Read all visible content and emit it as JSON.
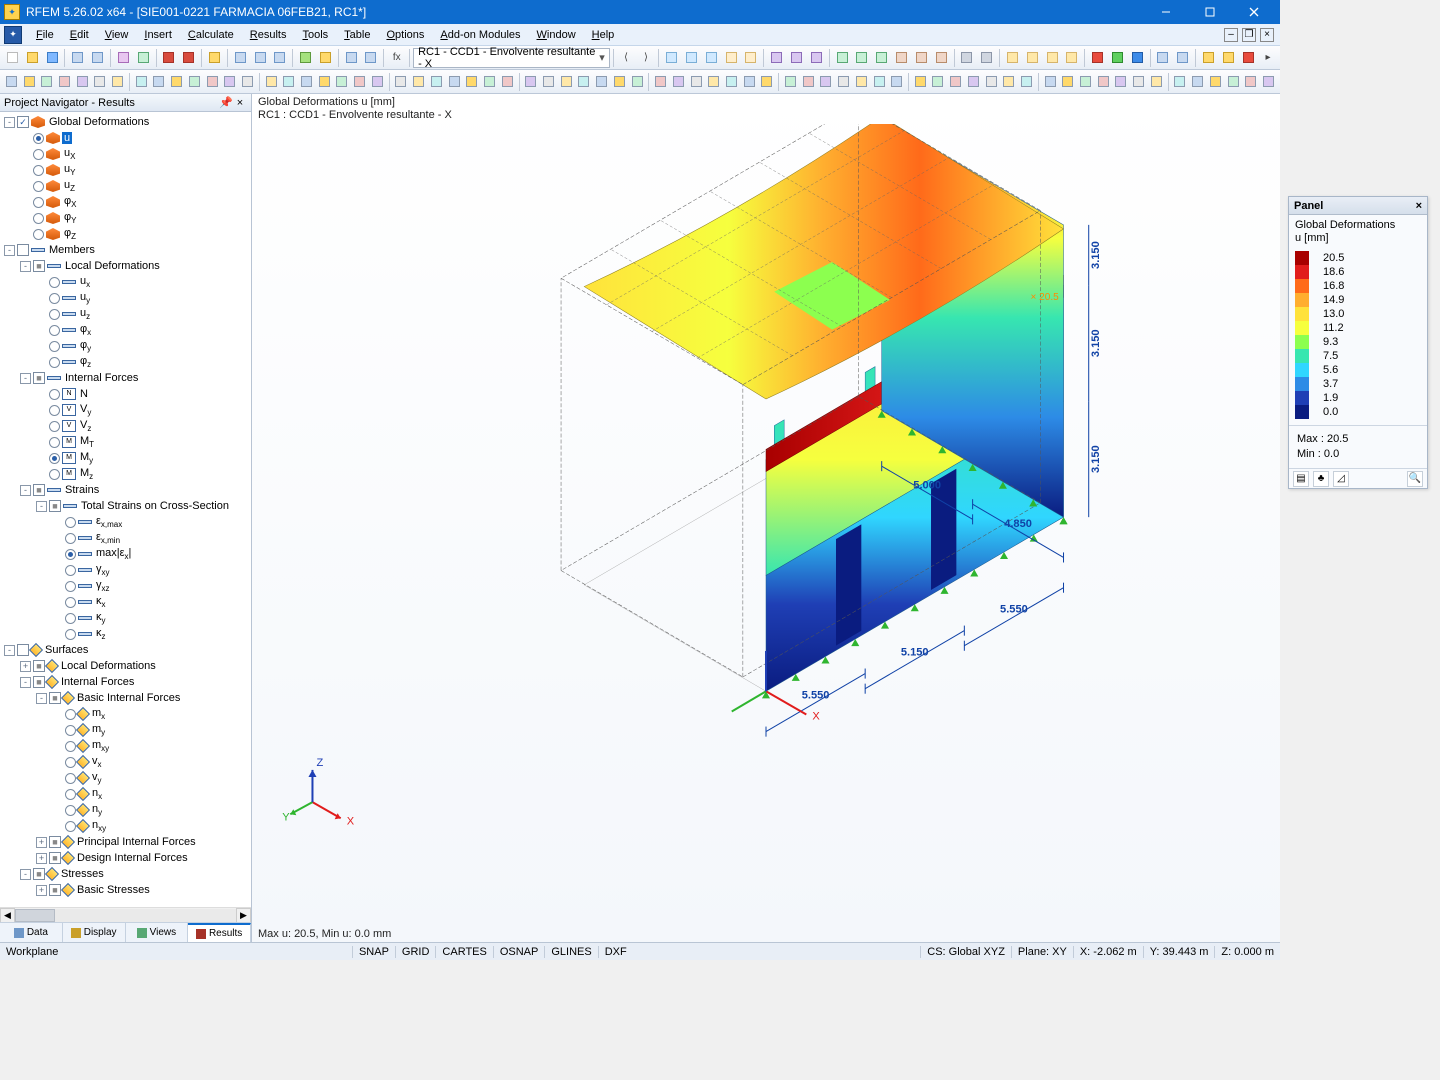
{
  "title": "RFEM 5.26.02 x64 - [SIE001-0221 FARMACIA 06FEB21, RC1*]",
  "menu": [
    "File",
    "Edit",
    "View",
    "Insert",
    "Calculate",
    "Results",
    "Tools",
    "Table",
    "Options",
    "Add-on Modules",
    "Window",
    "Help"
  ],
  "toolbar1_dd": "RC1 - CCD1 - Envolvente resultante - X",
  "nav_title": "Project Navigator - Results",
  "nav_tabs": [
    "Data",
    "Display",
    "Views",
    "Results"
  ],
  "nav_active_tab": 3,
  "tree": [
    {
      "d": 0,
      "exp": "-",
      "chk": "v",
      "ic": "cube",
      "lbl": "Global Deformations"
    },
    {
      "d": 1,
      "rad": "on",
      "ic": "cube",
      "lbl": "u",
      "sel": true
    },
    {
      "d": 1,
      "rad": "off",
      "ic": "cube",
      "lbl": "u<sub>X</sub>"
    },
    {
      "d": 1,
      "rad": "off",
      "ic": "cube",
      "lbl": "u<sub>Y</sub>"
    },
    {
      "d": 1,
      "rad": "off",
      "ic": "cube",
      "lbl": "u<sub>Z</sub>"
    },
    {
      "d": 1,
      "rad": "off",
      "ic": "cube",
      "lbl": "φ<sub>X</sub>"
    },
    {
      "d": 1,
      "rad": "off",
      "ic": "cube",
      "lbl": "φ<sub>Y</sub>"
    },
    {
      "d": 1,
      "rad": "off",
      "ic": "cube",
      "lbl": "φ<sub>Z</sub>"
    },
    {
      "d": 0,
      "exp": "-",
      "chk": " ",
      "ic": "bar",
      "lbl": "Members"
    },
    {
      "d": 1,
      "exp": "-",
      "chk": "b",
      "ic": "bar",
      "lbl": "Local Deformations"
    },
    {
      "d": 2,
      "rad": "off",
      "ic": "bar",
      "lbl": "u<sub>x</sub>"
    },
    {
      "d": 2,
      "rad": "off",
      "ic": "bar",
      "lbl": "u<sub>y</sub>"
    },
    {
      "d": 2,
      "rad": "off",
      "ic": "bar",
      "lbl": "u<sub>z</sub>"
    },
    {
      "d": 2,
      "rad": "off",
      "ic": "bar",
      "lbl": "φ<sub>x</sub>"
    },
    {
      "d": 2,
      "rad": "off",
      "ic": "bar",
      "lbl": "φ<sub>y</sub>"
    },
    {
      "d": 2,
      "rad": "off",
      "ic": "bar",
      "lbl": "φ<sub>z</sub>"
    },
    {
      "d": 1,
      "exp": "-",
      "chk": "b",
      "ic": "bar",
      "lbl": "Internal Forces"
    },
    {
      "d": 2,
      "rad": "off",
      "ic": "nbar",
      "lbl": "N"
    },
    {
      "d": 2,
      "rad": "off",
      "ic": "nbar",
      "lbl": "V<sub>y</sub>"
    },
    {
      "d": 2,
      "rad": "off",
      "ic": "nbar",
      "lbl": "V<sub>z</sub>"
    },
    {
      "d": 2,
      "rad": "off",
      "ic": "nbar",
      "lbl": "M<sub>T</sub>"
    },
    {
      "d": 2,
      "rad": "on",
      "ic": "nbar",
      "lbl": "M<sub>y</sub>"
    },
    {
      "d": 2,
      "rad": "off",
      "ic": "nbar",
      "lbl": "M<sub>z</sub>"
    },
    {
      "d": 1,
      "exp": "-",
      "chk": "b",
      "ic": "bar",
      "lbl": "Strains"
    },
    {
      "d": 2,
      "exp": "-",
      "chk": "b",
      "ic": "bar",
      "lbl": "Total Strains on Cross-Section"
    },
    {
      "d": 3,
      "rad": "off",
      "ic": "bar",
      "lbl": "ε<sub>x,max</sub>"
    },
    {
      "d": 3,
      "rad": "off",
      "ic": "bar",
      "lbl": "ε<sub>x,min</sub>"
    },
    {
      "d": 3,
      "rad": "on",
      "ic": "bar",
      "lbl": "max|ε<sub>x</sub>|"
    },
    {
      "d": 3,
      "rad": "off",
      "ic": "bar",
      "lbl": "γ<sub>xy</sub>"
    },
    {
      "d": 3,
      "rad": "off",
      "ic": "bar",
      "lbl": "γ<sub>xz</sub>"
    },
    {
      "d": 3,
      "rad": "off",
      "ic": "bar",
      "lbl": "κ<sub>x</sub>"
    },
    {
      "d": 3,
      "rad": "off",
      "ic": "bar",
      "lbl": "κ<sub>y</sub>"
    },
    {
      "d": 3,
      "rad": "off",
      "ic": "bar",
      "lbl": "κ<sub>z</sub>"
    },
    {
      "d": 0,
      "exp": "-",
      "chk": " ",
      "ic": "diam",
      "lbl": "Surfaces"
    },
    {
      "d": 1,
      "exp": "+",
      "chk": "b",
      "ic": "diam",
      "lbl": "Local Deformations"
    },
    {
      "d": 1,
      "exp": "-",
      "chk": "b",
      "ic": "diam",
      "lbl": "Internal Forces"
    },
    {
      "d": 2,
      "exp": "-",
      "chk": "b",
      "ic": "diam",
      "lbl": "Basic Internal Forces"
    },
    {
      "d": 3,
      "rad": "off",
      "ic": "diam",
      "lbl": "m<sub>x</sub>"
    },
    {
      "d": 3,
      "rad": "off",
      "ic": "diam",
      "lbl": "m<sub>y</sub>"
    },
    {
      "d": 3,
      "rad": "off",
      "ic": "diam",
      "lbl": "m<sub>xy</sub>"
    },
    {
      "d": 3,
      "rad": "off",
      "ic": "diam",
      "lbl": "v<sub>x</sub>"
    },
    {
      "d": 3,
      "rad": "off",
      "ic": "diam",
      "lbl": "v<sub>y</sub>"
    },
    {
      "d": 3,
      "rad": "off",
      "ic": "diam",
      "lbl": "n<sub>x</sub>"
    },
    {
      "d": 3,
      "rad": "off",
      "ic": "diam",
      "lbl": "n<sub>y</sub>"
    },
    {
      "d": 3,
      "rad": "off",
      "ic": "diam",
      "lbl": "n<sub>xy</sub>"
    },
    {
      "d": 2,
      "exp": "+",
      "chk": "b",
      "ic": "diam",
      "lbl": "Principal Internal Forces"
    },
    {
      "d": 2,
      "exp": "+",
      "chk": "b",
      "ic": "diam",
      "lbl": "Design Internal Forces"
    },
    {
      "d": 1,
      "exp": "-",
      "chk": "b",
      "ic": "diam",
      "lbl": "Stresses"
    },
    {
      "d": 2,
      "exp": "+",
      "chk": "b",
      "ic": "diam",
      "lbl": "Basic Stresses"
    }
  ],
  "vhdr1": "Global Deformations u [mm]",
  "vhdr2": "RC1 : CCD1 - Envolvente resultante - X",
  "vftr": "Max u: 20.5, Min u: 0.0 mm",
  "panel_title": "Panel",
  "panel_sub1": "Global Deformations",
  "panel_sub2": "u [mm]",
  "legend": [
    {
      "c": "#a80000",
      "v": "20.5"
    },
    {
      "c": "#e11c1c",
      "v": "18.6"
    },
    {
      "c": "#ff6a1a",
      "v": "16.8"
    },
    {
      "c": "#ffae2f",
      "v": "14.9"
    },
    {
      "c": "#ffe23b",
      "v": "13.0"
    },
    {
      "c": "#f6ff3e",
      "v": "11.2"
    },
    {
      "c": "#8cff4f",
      "v": "9.3"
    },
    {
      "c": "#37e6b0",
      "v": "7.5"
    },
    {
      "c": "#30d6ff",
      "v": "5.6"
    },
    {
      "c": "#2d8be6",
      "v": "3.7"
    },
    {
      "c": "#1f3fb5",
      "v": "1.9"
    },
    {
      "c": "#0a1c80",
      "v": "0.0"
    }
  ],
  "panel_max": "Max :  20.5",
  "panel_min": "Min  :   0.0",
  "dims": [
    "5.550",
    "5.150",
    "5.550",
    "3.150",
    "3.150",
    "3.150",
    "5.000",
    "4.850"
  ],
  "axis": [
    "X",
    "Y",
    "Z"
  ],
  "status_left": "Workplane",
  "status_cells": [
    "SNAP",
    "GRID",
    "CARTES",
    "OSNAP",
    "GLINES",
    "DXF"
  ],
  "status_right": [
    "CS: Global XYZ",
    "Plane: XY",
    "X: -2.062 m",
    "Y: 39.443 m",
    "Z: 0.000 m"
  ],
  "tb1_icons": [
    {
      "bg": "#fff",
      "bd": "#bbb"
    },
    {
      "bg": "#ffd96b",
      "bd": "#caa02a"
    },
    {
      "bg": "#7fb8ff",
      "bd": "#3a7cc6"
    },
    "sep",
    {
      "bg": "#c7d9f0",
      "bd": "#6e97c8"
    },
    {
      "bg": "#c7d9f0",
      "bd": "#6e97c8"
    },
    "sep",
    {
      "bg": "#e8c7f0",
      "bd": "#a86bb8"
    },
    {
      "bg": "#c7f0d6",
      "bd": "#58a874"
    },
    "sep",
    {
      "bg": "#d84b3d",
      "bd": "#a63228"
    },
    {
      "bg": "#d84b3d",
      "bd": "#a63228"
    },
    "sep",
    {
      "bg": "#ffd96b",
      "bd": "#caa02a"
    },
    "sep",
    {
      "bg": "#c7d9f0",
      "bd": "#6e97c8"
    },
    {
      "bg": "#c7d9f0",
      "bd": "#6e97c8"
    },
    {
      "bg": "#c7d9f0",
      "bd": "#6e97c8"
    },
    "sep",
    {
      "bg": "#a5e17e",
      "bd": "#5e9a3d"
    },
    {
      "bg": "#ffd96b",
      "bd": "#caa02a"
    },
    "sep",
    {
      "bg": "#c7d9f0",
      "bd": "#6e97c8"
    },
    {
      "bg": "#c7d9f0",
      "bd": "#6e97c8"
    },
    "sep",
    {
      "txt": "fx",
      "bg": "#fff",
      "bd": "#bbb"
    },
    "sep",
    "dd",
    "sep",
    {
      "txt": "⟨",
      "bg": "#fff",
      "bd": "#bbb"
    },
    {
      "txt": "⟩",
      "bg": "#fff",
      "bd": "#bbb"
    },
    "sep",
    {
      "bg": "#d0e9ff",
      "bd": "#7aaed6"
    },
    {
      "bg": "#d0e9ff",
      "bd": "#7aaed6"
    },
    {
      "bg": "#d0e9ff",
      "bd": "#7aaed6"
    },
    {
      "bg": "#ffeecb",
      "bd": "#d6b46b"
    },
    {
      "bg": "#ffeecb",
      "bd": "#d6b46b"
    },
    "sep",
    {
      "bg": "#d8c7f0",
      "bd": "#8c6bb8"
    },
    {
      "bg": "#d8c7f0",
      "bd": "#8c6bb8"
    },
    {
      "bg": "#d8c7f0",
      "bd": "#8c6bb8"
    },
    "sep",
    {
      "bg": "#c7f0d6",
      "bd": "#58a874"
    },
    {
      "bg": "#c7f0d6",
      "bd": "#58a874"
    },
    {
      "bg": "#c7f0d6",
      "bd": "#58a874"
    },
    {
      "bg": "#f0d6c7",
      "bd": "#b88c6b"
    },
    {
      "bg": "#f0d6c7",
      "bd": "#b88c6b"
    },
    {
      "bg": "#f0d6c7",
      "bd": "#b88c6b"
    },
    "sep",
    {
      "bg": "#d0d6e0",
      "bd": "#8c96a8"
    },
    {
      "bg": "#d0d6e0",
      "bd": "#8c96a8"
    },
    "sep",
    {
      "bg": "#ffe8a8",
      "bd": "#d6b46b"
    },
    {
      "bg": "#ffe8a8",
      "bd": "#d6b46b"
    },
    {
      "bg": "#ffe8a8",
      "bd": "#d6b46b"
    },
    {
      "bg": "#ffe8a8",
      "bd": "#d6b46b"
    },
    "sep",
    {
      "bg": "#e84b3d",
      "bd": "#a63228"
    },
    {
      "bg": "#5fcf5f",
      "bd": "#2d8a2d"
    },
    {
      "bg": "#3d8be8",
      "bd": "#205ba6"
    },
    "sep",
    {
      "bg": "#c7d9f0",
      "bd": "#6e97c8"
    },
    {
      "bg": "#c7d9f0",
      "bd": "#6e97c8"
    },
    "sep",
    {
      "bg": "#ffd96b",
      "bd": "#caa02a"
    },
    {
      "bg": "#ffd96b",
      "bd": "#caa02a"
    },
    {
      "bg": "#e84b3d",
      "bd": "#a63228"
    },
    {
      "txt": "▸",
      "bg": "#fff",
      "bd": "#bbb"
    }
  ],
  "tb2_count": 69
}
